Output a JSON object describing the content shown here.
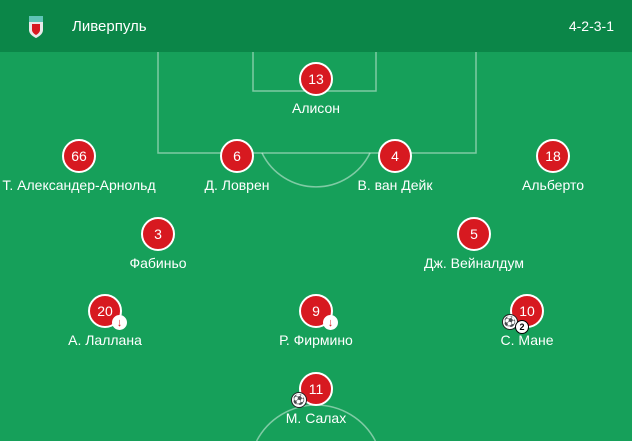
{
  "header": {
    "team": "Ливерпуль",
    "formation": "4-2-3-1",
    "logo": "liverpool-crest"
  },
  "colors": {
    "header": "#0b8648",
    "pitch": "#16a05a",
    "player": "#d71920"
  },
  "players": [
    {
      "number": "13",
      "name": "Алисон"
    },
    {
      "number": "66",
      "name": "Т. Александер-Арнольд"
    },
    {
      "number": "6",
      "name": "Д. Ловрен"
    },
    {
      "number": "4",
      "name": "В. ван Дейк"
    },
    {
      "number": "18",
      "name": "Альберто"
    },
    {
      "number": "3",
      "name": "Фабиньо"
    },
    {
      "number": "5",
      "name": "Дж. Вейналдум"
    },
    {
      "number": "20",
      "name": "А. Лаллана",
      "substituted": true
    },
    {
      "number": "9",
      "name": "Р. Фирмино",
      "substituted": true
    },
    {
      "number": "10",
      "name": "С. Мане",
      "goals": "2"
    },
    {
      "number": "11",
      "name": "М. Салах",
      "goals": "1"
    }
  ]
}
